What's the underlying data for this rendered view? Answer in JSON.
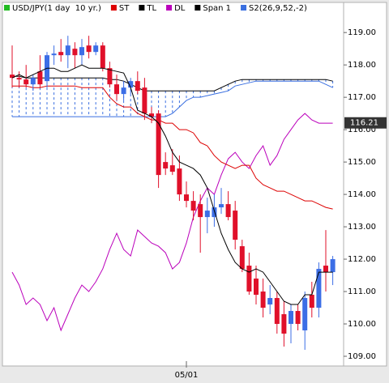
{
  "chart_data": {
    "type": "candlestick",
    "name": "USD/JPY(1 day  10 yr.)",
    "name_color": "#22bb22",
    "up_color": "#3c6ee6",
    "down_color": "#e0102a",
    "categories": [
      null,
      null,
      null,
      null,
      null,
      null,
      null,
      null,
      null,
      null,
      null,
      null,
      null,
      null,
      null,
      null,
      null,
      null,
      null,
      null,
      null,
      null,
      null,
      null,
      null,
      "05/01",
      null,
      null,
      null,
      null,
      null,
      null,
      null,
      null,
      null,
      null,
      null,
      null,
      null,
      null,
      null,
      null,
      null,
      null,
      null,
      null,
      null
    ],
    "open": [
      117.7,
      117.6,
      117.55,
      117.4,
      117.8,
      117.5,
      118.3,
      118.4,
      118.3,
      118.5,
      118.3,
      118.6,
      118.4,
      118.6,
      117.9,
      117.4,
      117.1,
      117.3,
      117.5,
      117.3,
      116.5,
      116.5,
      115.0,
      114.9,
      114.8,
      114.0,
      113.8,
      113.7,
      113.3,
      113.3,
      113.6,
      113.7,
      113.5,
      112.4,
      111.8,
      111.4,
      111.0,
      110.6,
      110.8,
      110.3,
      110.0,
      110.4,
      109.8,
      110.9,
      110.5,
      111.8,
      111.6
    ],
    "high": [
      118.6,
      117.8,
      118.0,
      117.7,
      118.3,
      118.4,
      118.6,
      118.8,
      118.9,
      118.7,
      118.8,
      118.9,
      118.7,
      118.7,
      118.1,
      117.7,
      117.5,
      117.6,
      117.8,
      117.6,
      116.7,
      116.6,
      115.3,
      115.4,
      115.2,
      114.4,
      114.1,
      114.0,
      113.9,
      114.0,
      114.2,
      114.1,
      113.8,
      112.6,
      112.2,
      111.8,
      111.4,
      111.2,
      111.0,
      110.7,
      110.6,
      110.6,
      111.0,
      111.3,
      111.9,
      112.9,
      112.1
    ],
    "low": [
      117.3,
      117.3,
      117.3,
      117.2,
      117.3,
      117.3,
      118.0,
      118.1,
      117.9,
      117.9,
      118.0,
      118.2,
      118.3,
      117.8,
      117.3,
      116.9,
      116.9,
      117.1,
      117.1,
      116.3,
      116.2,
      114.2,
      114.6,
      114.6,
      113.8,
      113.6,
      113.2,
      112.2,
      112.8,
      113.0,
      113.4,
      113.2,
      112.3,
      111.6,
      110.9,
      110.6,
      110.2,
      110.3,
      109.7,
      109.3,
      109.4,
      109.8,
      109.2,
      110.2,
      110.2,
      111.0,
      111.2
    ],
    "close": [
      117.6,
      117.55,
      117.4,
      117.6,
      117.4,
      118.3,
      118.35,
      118.3,
      118.6,
      118.3,
      118.55,
      118.4,
      118.6,
      117.9,
      117.4,
      117.1,
      117.3,
      117.5,
      117.2,
      116.5,
      116.4,
      114.6,
      114.8,
      114.7,
      114.0,
      113.8,
      113.5,
      113.3,
      113.5,
      113.6,
      113.7,
      113.3,
      112.6,
      111.7,
      111.0,
      110.9,
      110.5,
      110.8,
      110.0,
      109.7,
      110.4,
      110.0,
      110.8,
      110.5,
      111.7,
      111.6,
      112.0
    ],
    "series": [
      {
        "name": "ST",
        "color": "#dd0000",
        "values": [
          117.35,
          117.35,
          117.35,
          117.3,
          117.3,
          117.35,
          117.35,
          117.35,
          117.35,
          117.35,
          117.3,
          117.3,
          117.3,
          117.3,
          117.0,
          116.8,
          116.7,
          116.7,
          116.5,
          116.4,
          116.3,
          116.3,
          116.2,
          116.2,
          116.0,
          116.0,
          115.9,
          115.6,
          115.5,
          115.2,
          115.0,
          114.9,
          114.8,
          114.9,
          114.9,
          114.5,
          114.3,
          114.2,
          114.1,
          114.1,
          114.0,
          113.9,
          113.8,
          113.8,
          113.7,
          113.6,
          113.55
        ]
      },
      {
        "name": "TL",
        "color": "#000000",
        "values": [
          117.6,
          117.7,
          117.6,
          117.7,
          117.8,
          117.9,
          117.9,
          117.8,
          117.8,
          117.9,
          118.0,
          117.9,
          117.9,
          117.9,
          117.85,
          117.8,
          117.75,
          117.3,
          116.6,
          116.5,
          116.4,
          116.2,
          115.8,
          115.3,
          115.0,
          114.9,
          114.8,
          114.6,
          114.2,
          113.5,
          112.8,
          112.3,
          111.9,
          111.7,
          111.6,
          111.7,
          111.6,
          111.3,
          111.0,
          110.7,
          110.6,
          110.6,
          110.9,
          110.9,
          111.6,
          111.6,
          111.6
        ]
      },
      {
        "name": "DL",
        "color": "#bb00bb",
        "values": [
          111.6,
          111.2,
          110.6,
          110.8,
          110.6,
          110.1,
          110.5,
          109.8,
          110.3,
          110.8,
          111.2,
          111.0,
          111.3,
          111.7,
          112.3,
          112.8,
          112.3,
          112.1,
          112.9,
          112.7,
          112.5,
          112.4,
          112.2,
          111.7,
          111.9,
          112.5,
          113.3,
          113.8,
          114.2,
          114.0,
          114.6,
          115.1,
          115.3,
          115.0,
          114.8,
          115.2,
          115.5,
          114.9,
          115.2,
          115.7,
          116.0,
          116.3,
          116.5,
          116.3,
          116.2,
          116.2,
          116.2
        ]
      },
      {
        "name": "Span 1",
        "color": "#000000",
        "values": [
          117.65,
          117.65,
          117.6,
          117.6,
          117.6,
          117.6,
          117.6,
          117.6,
          117.6,
          117.6,
          117.6,
          117.6,
          117.6,
          117.6,
          117.55,
          117.55,
          117.5,
          117.4,
          117.3,
          117.2,
          117.2,
          117.2,
          117.2,
          117.2,
          117.2,
          117.2,
          117.2,
          117.2,
          117.2,
          117.2,
          117.3,
          117.4,
          117.5,
          117.55,
          117.55,
          117.55,
          117.55,
          117.55,
          117.55,
          117.55,
          117.55,
          117.55,
          117.55,
          117.55,
          117.55,
          117.55,
          117.5
        ]
      },
      {
        "name": "S2(26,9,52,-2)",
        "color": "#3a6fe0",
        "values": [
          116.4,
          116.4,
          116.4,
          116.4,
          116.4,
          116.4,
          116.4,
          116.4,
          116.4,
          116.4,
          116.4,
          116.4,
          116.4,
          116.4,
          116.4,
          116.4,
          116.4,
          116.4,
          116.4,
          116.4,
          116.4,
          116.4,
          116.4,
          116.5,
          116.7,
          116.9,
          117.0,
          117.0,
          117.05,
          117.1,
          117.15,
          117.2,
          117.35,
          117.4,
          117.45,
          117.5,
          117.5,
          117.5,
          117.5,
          117.5,
          117.5,
          117.5,
          117.5,
          117.5,
          117.5,
          117.4,
          117.3
        ]
      }
    ],
    "ylim": [
      108.7,
      119.93
    ],
    "yticks": [
      {
        "value": 109,
        "label": "109.00"
      },
      {
        "value": 110,
        "label": "110.00"
      },
      {
        "value": 111,
        "label": "111.00"
      },
      {
        "value": 112,
        "label": "112.00"
      },
      {
        "value": 113,
        "label": "113.00"
      },
      {
        "value": 114,
        "label": "114.00"
      },
      {
        "value": 115,
        "label": "115.00"
      },
      {
        "value": 116,
        "label": "116.00"
      },
      {
        "value": 117,
        "label": "117.00"
      },
      {
        "value": 118,
        "label": "118.00"
      },
      {
        "value": 119,
        "label": "119.00"
      }
    ],
    "last_price": 116.21
  }
}
